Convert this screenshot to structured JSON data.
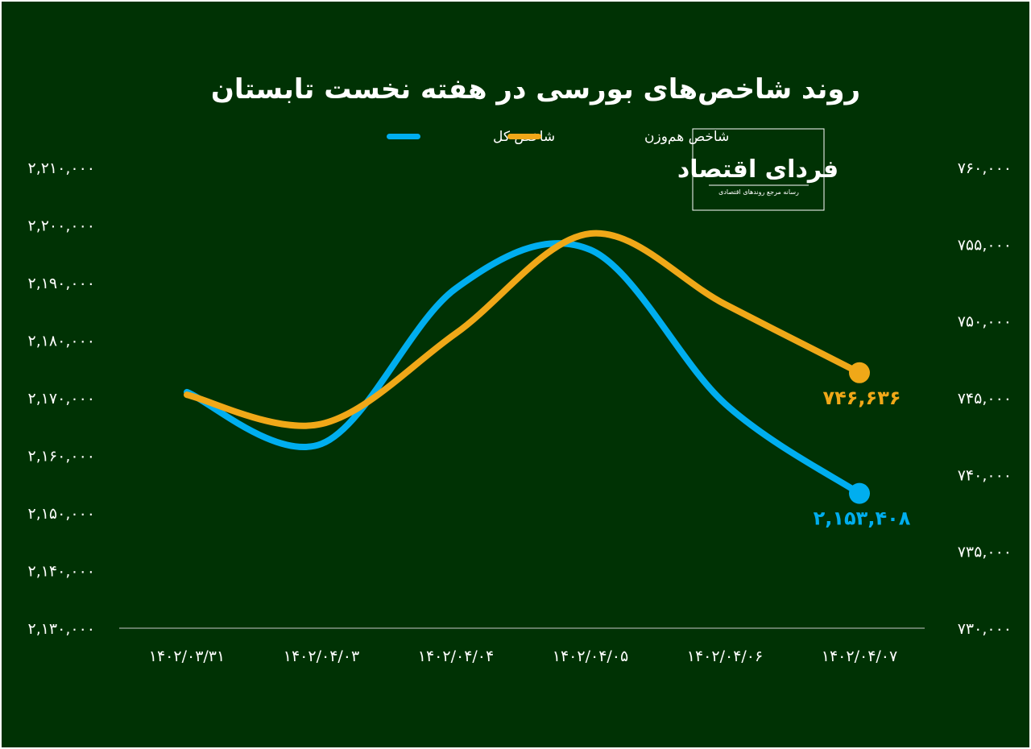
{
  "chart_data": {
    "type": "line",
    "title": "روند شاخص‌های بورسی در هفته نخست تابستان",
    "categories": [
      "۱۴۰۲/۰۳/۳۱",
      "۱۴۰۲/۰۴/۰۳",
      "۱۴۰۲/۰۴/۰۴",
      "۱۴۰۲/۰۴/۰۵",
      "۱۴۰۲/۰۴/۰۶",
      "۱۴۰۲/۰۴/۰۷"
    ],
    "series": [
      {
        "name": "شاخص کل",
        "color": "#00aeef",
        "axis": "left",
        "values": [
          2171000,
          2162000,
          2189000,
          2195700,
          2169000,
          2153408
        ],
        "end_label": "۲,۱۵۳,۴۰۸"
      },
      {
        "name": "شاخص هم‌وزن",
        "color": "#f0a818",
        "axis": "right",
        "values": [
          745200,
          743300,
          749200,
          755700,
          751100,
          746636
        ],
        "end_label": "۷۴۶,۶۳۶"
      }
    ],
    "y_left": {
      "min": 2130000,
      "max": 2210000,
      "ticks": [
        "۲,۱۳۰,۰۰۰",
        "۲,۱۴۰,۰۰۰",
        "۲,۱۵۰,۰۰۰",
        "۲,۱۶۰,۰۰۰",
        "۲,۱۷۰,۰۰۰",
        "۲,۱۸۰,۰۰۰",
        "۲,۱۹۰,۰۰۰",
        "۲,۲۰۰,۰۰۰",
        "۲,۲۱۰,۰۰۰"
      ]
    },
    "y_right": {
      "min": 730000,
      "max": 760000,
      "ticks": [
        "۷۳۰,۰۰۰",
        "۷۳۵,۰۰۰",
        "۷۴۰,۰۰۰",
        "۷۴۵,۰۰۰",
        "۷۵۰,۰۰۰",
        "۷۵۵,۰۰۰",
        "۷۶۰,۰۰۰"
      ]
    },
    "legend_placement": "top-center",
    "grid": false
  },
  "logo": {
    "name": "فردای اقتصاد",
    "tagline": "رسانه مرجع روندهای اقتصادی"
  },
  "colors": {
    "background": "#003204",
    "text": "#ffffff"
  }
}
